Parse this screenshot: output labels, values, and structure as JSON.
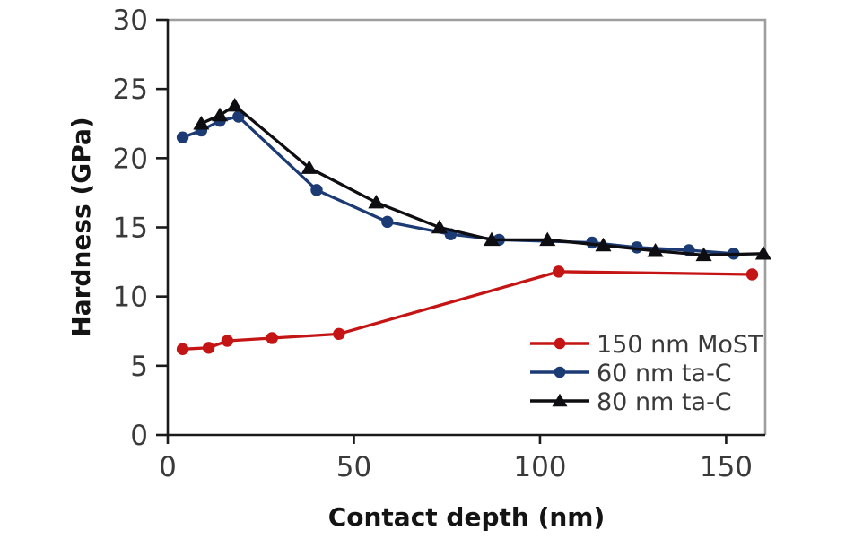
{
  "chart_data": {
    "type": "line",
    "title": "",
    "xlabel": "Contact depth (nm)",
    "ylabel": "Hardness (GPa)",
    "xlim": [
      0,
      160.5
    ],
    "ylim": [
      0,
      30
    ],
    "x_ticks": [
      0,
      50,
      100,
      150
    ],
    "y_ticks": [
      0,
      5,
      10,
      15,
      20,
      25,
      30
    ],
    "x_tick_labels": [
      "0",
      "50",
      "100",
      "150"
    ],
    "y_tick_labels": [
      "0",
      "5",
      "10",
      "15",
      "20",
      "25",
      "30"
    ],
    "grid": false,
    "legend_position": "inside-lower-right",
    "series": [
      {
        "name": "150 nm MoST",
        "marker": "circle",
        "color": "#c51414",
        "x": [
          4,
          11,
          16,
          28,
          46,
          105,
          157
        ],
        "y": [
          6.2,
          6.3,
          6.8,
          7.0,
          7.3,
          11.8,
          11.6
        ]
      },
      {
        "name": "60 nm ta-C",
        "marker": "circle",
        "color": "#1c3a74",
        "x": [
          4,
          9,
          14,
          19,
          40,
          59,
          76,
          89,
          114,
          126,
          140,
          152
        ],
        "y": [
          21.5,
          22.0,
          22.7,
          23.0,
          17.7,
          15.4,
          14.5,
          14.1,
          13.9,
          13.55,
          13.35,
          13.1
        ]
      },
      {
        "name": "80 nm ta-C",
        "marker": "triangle",
        "color": "#0d0d12",
        "x": [
          9,
          14,
          18,
          38,
          56,
          73,
          87,
          102,
          117,
          131,
          144,
          160
        ],
        "y": [
          22.5,
          23.1,
          23.8,
          19.3,
          16.8,
          15.0,
          14.1,
          14.1,
          13.7,
          13.3,
          13.0,
          13.1
        ]
      }
    ]
  },
  "colors": {
    "frame_gray": "#9e9e9e",
    "axis_black": "#1a1a1a",
    "tick_text": "#3a3a3a",
    "background": "#ffffff"
  }
}
